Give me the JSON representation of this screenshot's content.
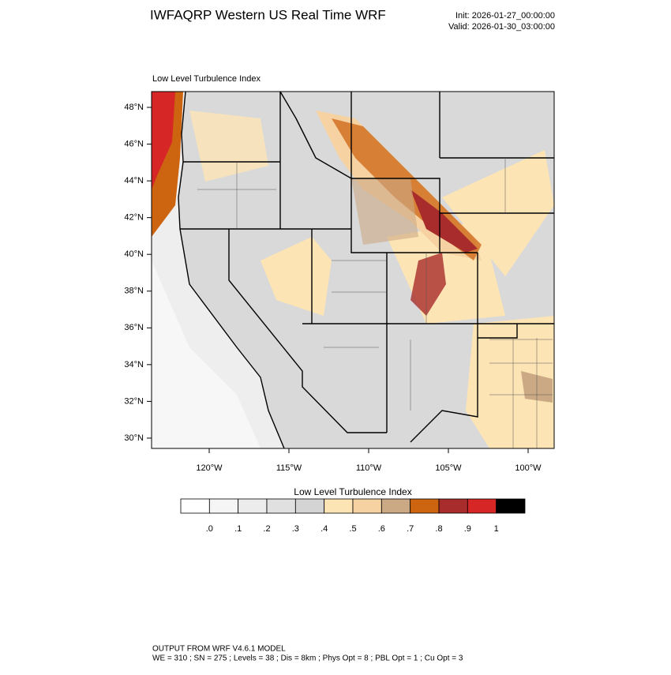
{
  "header": {
    "title": "IWFAQRP Western US Real Time WRF",
    "init": "Init: 2026-01-27_00:00:00",
    "valid": "Valid: 2026-01-30_03:00:00"
  },
  "map": {
    "subtitle": "Low Level Turbulence Index",
    "lat_labels": [
      "48°N",
      "46°N",
      "44°N",
      "42°N",
      "40°N",
      "38°N",
      "36°N",
      "34°N",
      "32°N",
      "30°N"
    ],
    "lon_labels": [
      "120°W",
      "115°W",
      "110°W",
      "105°W",
      "100°W"
    ]
  },
  "colorbar": {
    "title": "Low Level Turbulence Index",
    "labels": [
      ".0",
      ".1",
      ".2",
      ".3",
      ".4",
      ".5",
      ".6",
      ".7",
      ".8",
      ".9",
      "1"
    ],
    "colors": [
      "#ffffff",
      "#f5f5f5",
      "#ececec",
      "#e0e0e0",
      "#d4d4d4",
      "#fde4b4",
      "#f6d2a2",
      "#cba985",
      "#cc6410",
      "#a82c2c",
      "#d62626",
      "#000000"
    ]
  },
  "footer": {
    "line1": "OUTPUT FROM WRF V4.6.1 MODEL",
    "line2": "WE = 310 ; SN = 275 ; Levels = 38 ; Dis = 8km ; Phys Opt = 8 ; PBL Opt = 1 ; Cu Opt = 3"
  }
}
